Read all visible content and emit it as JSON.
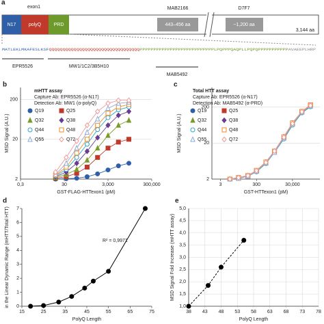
{
  "panel_a": {
    "label": "a",
    "exon_label": "exon1",
    "domains": [
      "N17",
      "polyQ",
      "PRD"
    ],
    "boxes": [
      {
        "top": "MAB2166",
        "text": "443–456 aa"
      },
      {
        "top": "D7F7",
        "text": "~1,200 aa"
      }
    ],
    "length": "3,144 aa",
    "sequence": [
      "MATLEKLMKAFESLKSF",
      "QQQQQQQQQQQQQQQQQQQQQQQQQQQQQQQQQ",
      "PPPPPPPPPPPPPPPPPPPPPPPPPPPLPQPPPQAQPLLPQPQPPPPPPPPPPP",
      "AVAEEPLHRP"
    ],
    "antibodies": [
      "EPR5526",
      "MW1/1C2/3B5H10",
      "MAB5492"
    ]
  },
  "chart_data": [
    {
      "type": "line",
      "label": "b",
      "title": "mHTT assay",
      "notes": [
        "Capture Ab: EPR5526 (α-N17)",
        "Detection Ab: MW1 (α-polyQ)"
      ],
      "x_label": "GST-FLAG-HTTexon1 (pM)",
      "y_label": "MSD Signal (A.U.)",
      "xscale": "log",
      "yscale": "log",
      "grid": true,
      "legend": true,
      "xlim": [
        0.3,
        300000
      ],
      "ylim": [
        2,
        400
      ],
      "xticks": [
        {
          "value": 0.3,
          "label": "0,3"
        },
        30,
        {
          "value": 3000,
          "label": "3,000"
        },
        {
          "value": 300000,
          "label": "300,000"
        }
      ],
      "yticks": [
        2,
        20,
        200
      ],
      "x": [
        12,
        37,
        111,
        333,
        1000,
        3000,
        9000,
        27000
      ],
      "series": [
        {
          "name": "Q19",
          "color": "#2e5fa8",
          "marker": "circle",
          "filled": true,
          "values": [
            2.0,
            2.05,
            2.1,
            2.3,
            2.7,
            3.4,
            4.3,
            5.0
          ]
        },
        {
          "name": "Q25",
          "color": "#c0392b",
          "marker": "square",
          "filled": true,
          "values": [
            2.1,
            2.3,
            2.8,
            4,
            7,
            12,
            17,
            20
          ]
        },
        {
          "name": "Q32",
          "color": "#7a9a2a",
          "marker": "triangle",
          "filled": true,
          "values": [
            2.2,
            2.6,
            3.5,
            6,
            12,
            25,
            45,
            60
          ]
        },
        {
          "name": "Q38",
          "color": "#6a3d8f",
          "marker": "diamond",
          "filled": true,
          "values": [
            2.3,
            3,
            5,
            10,
            22,
            45,
            80,
            100
          ]
        },
        {
          "name": "Q44",
          "color": "#2aa7c9",
          "marker": "circle",
          "filled": false,
          "values": [
            2.4,
            3.5,
            7,
            15,
            35,
            70,
            110,
            130
          ]
        },
        {
          "name": "Q48",
          "color": "#f08a24",
          "marker": "square",
          "filled": false,
          "values": [
            2.5,
            4,
            9,
            20,
            45,
            90,
            130,
            150
          ]
        },
        {
          "name": "Q55",
          "color": "#8fa9d8",
          "marker": "triangle",
          "filled": false,
          "values": [
            2.6,
            5,
            12,
            30,
            65,
            120,
            160,
            170
          ]
        },
        {
          "name": "Q72",
          "color": "#ef9a9a",
          "marker": "diamond",
          "filled": false,
          "values": [
            3,
            7,
            18,
            45,
            100,
            160,
            190,
            190
          ]
        }
      ]
    },
    {
      "type": "line",
      "label": "c",
      "title": "Total HTT assay",
      "notes": [
        "Capture Ab: EPR5526 (α-N17)",
        "Detection Ab: MAB5492 (α-PRD)"
      ],
      "x_label": "GST-HTTexon1 (pM)",
      "y_label": "MSD Signal (A.U.)",
      "xscale": "log",
      "yscale": "log",
      "grid": true,
      "legend": true,
      "xlim": [
        1,
        1000000
      ],
      "ylim": [
        2,
        700
      ],
      "xticks": [
        3,
        300,
        {
          "value": 30000,
          "label": "30,000"
        }
      ],
      "yticks": [
        2,
        20,
        200
      ],
      "x": [
        10,
        30,
        100,
        300,
        1000,
        3000,
        10000,
        30000,
        100000,
        300000
      ],
      "series": [
        {
          "name": "Q19",
          "color": "#2e5fa8",
          "marker": "circle",
          "filled": true,
          "values": [
            2.0,
            2.1,
            2.4,
            3.2,
            5.5,
            11,
            27,
            65,
            140,
            210
          ]
        },
        {
          "name": "Q25",
          "color": "#c0392b",
          "marker": "square",
          "filled": true,
          "values": [
            2.0,
            2.2,
            2.5,
            3.4,
            5.8,
            12,
            29,
            70,
            150,
            230
          ]
        },
        {
          "name": "Q32",
          "color": "#7a9a2a",
          "marker": "triangle",
          "filled": true,
          "values": [
            2.0,
            2.1,
            2.4,
            3.3,
            5.6,
            11,
            28,
            67,
            145,
            215
          ]
        },
        {
          "name": "Q38",
          "color": "#6a3d8f",
          "marker": "diamond",
          "filled": true,
          "values": [
            2.0,
            2.2,
            2.5,
            3.4,
            5.9,
            12,
            30,
            72,
            150,
            225
          ]
        },
        {
          "name": "Q44",
          "color": "#2aa7c9",
          "marker": "circle",
          "filled": false,
          "values": [
            2.0,
            2.1,
            2.4,
            3.2,
            5.4,
            11,
            26,
            63,
            138,
            205
          ]
        },
        {
          "name": "Q48",
          "color": "#f08a24",
          "marker": "square",
          "filled": false,
          "values": [
            2.0,
            2.2,
            2.5,
            3.5,
            6.0,
            12,
            30,
            73,
            152,
            228
          ]
        },
        {
          "name": "Q55",
          "color": "#8fa9d8",
          "marker": "triangle",
          "filled": false,
          "values": [
            2.0,
            2.1,
            2.4,
            3.3,
            5.7,
            11,
            28,
            68,
            146,
            218
          ]
        },
        {
          "name": "Q72",
          "color": "#ef9a9a",
          "marker": "diamond",
          "filled": false,
          "values": [
            2.0,
            2.2,
            2.5,
            3.4,
            5.8,
            12,
            29,
            70,
            148,
            222
          ]
        }
      ]
    },
    {
      "type": "scatter",
      "label": "d",
      "fit": "solid",
      "x_label": "PolyQ Length",
      "y_label": "in the Linear Dynamic Range (mHTT/Total HTT)",
      "annotation": "R² = 0,9971",
      "grid": false,
      "xlim": [
        15,
        75
      ],
      "ylim": [
        0,
        7
      ],
      "xticks": [
        15,
        25,
        35,
        45,
        55,
        65,
        75
      ],
      "yticks": [
        0,
        1,
        2,
        3,
        4,
        5,
        6,
        7
      ],
      "x": [
        19,
        25,
        32,
        38,
        44,
        48,
        55,
        72
      ],
      "series": [
        {
          "color": "#000000",
          "marker": "circle",
          "filled": true,
          "values": [
            0.0,
            0.05,
            0.3,
            0.7,
            1.3,
            1.8,
            2.5,
            7.0
          ]
        }
      ]
    },
    {
      "type": "scatter",
      "label": "e",
      "fit": "dashed",
      "x_label": "PolyQ Length",
      "y_label": "MSD Signal Fold Increase (mHTT assay)",
      "grid": true,
      "xlim": [
        38,
        78
      ],
      "ylim": [
        1,
        5
      ],
      "xticks": [
        38,
        43,
        48,
        53,
        58,
        63,
        68,
        73,
        78
      ],
      "yticks": [
        {
          "value": 1,
          "label": "1,0"
        },
        {
          "value": 1.5,
          "label": "1,5"
        },
        {
          "value": 2,
          "label": "2,0"
        },
        {
          "value": 2.5,
          "label": "2,5"
        },
        {
          "value": 3,
          "label": "3,0"
        },
        {
          "value": 3.5,
          "label": "3,5"
        },
        {
          "value": 4,
          "label": "4,0"
        },
        {
          "value": 4.5,
          "label": "4,5"
        },
        {
          "value": 5,
          "label": "5,0"
        }
      ],
      "x": [
        38,
        44,
        48,
        55
      ],
      "series": [
        {
          "color": "#000000",
          "marker": "circle",
          "filled": true,
          "values": [
            1.0,
            1.85,
            2.6,
            3.7
          ]
        }
      ]
    }
  ]
}
